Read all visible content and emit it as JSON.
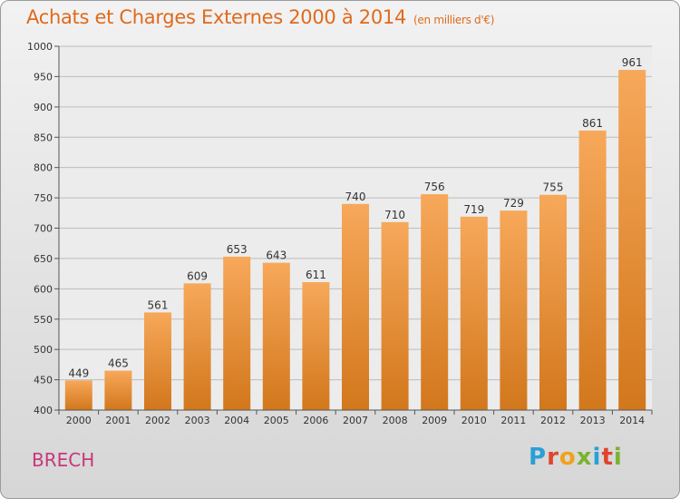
{
  "header": {
    "title": "Achats et Charges Externes 2000 à 2014",
    "unit": "(en milliers d'€)"
  },
  "footer": {
    "commune": "BRECH",
    "logo_text": "Proxiti",
    "logo_letters": [
      {
        "char": "P",
        "color": "#2a9fd8"
      },
      {
        "char": "r",
        "color": "#e0442c"
      },
      {
        "char": "o",
        "color": "#f0a21c"
      },
      {
        "char": "x",
        "color": "#7ab32e"
      },
      {
        "char": "i",
        "color": "#2a9fd8"
      },
      {
        "char": "t",
        "color": "#e0442c"
      },
      {
        "char": "i",
        "color": "#7ab32e"
      }
    ]
  },
  "colors": {
    "bar_light": "#f7a85a",
    "bar_dark": "#d2771c",
    "title": "#e06a1c",
    "commune": "#c8377b",
    "grid": "#bdbdbd"
  },
  "chart_data": {
    "type": "bar",
    "title": "Achats et Charges Externes 2000 à 2014",
    "subtitle": "(en milliers d'€)",
    "xlabel": "",
    "ylabel": "",
    "ylim": [
      400,
      1000
    ],
    "yticks": [
      400,
      450,
      500,
      550,
      600,
      650,
      700,
      750,
      800,
      850,
      900,
      950,
      1000
    ],
    "grid": true,
    "categories": [
      "2000",
      "2001",
      "2002",
      "2003",
      "2004",
      "2005",
      "2006",
      "2007",
      "2008",
      "2009",
      "2010",
      "2011",
      "2012",
      "2013",
      "2014"
    ],
    "values": [
      449,
      465,
      561,
      609,
      653,
      643,
      611,
      740,
      710,
      756,
      719,
      729,
      755,
      861,
      961
    ]
  }
}
